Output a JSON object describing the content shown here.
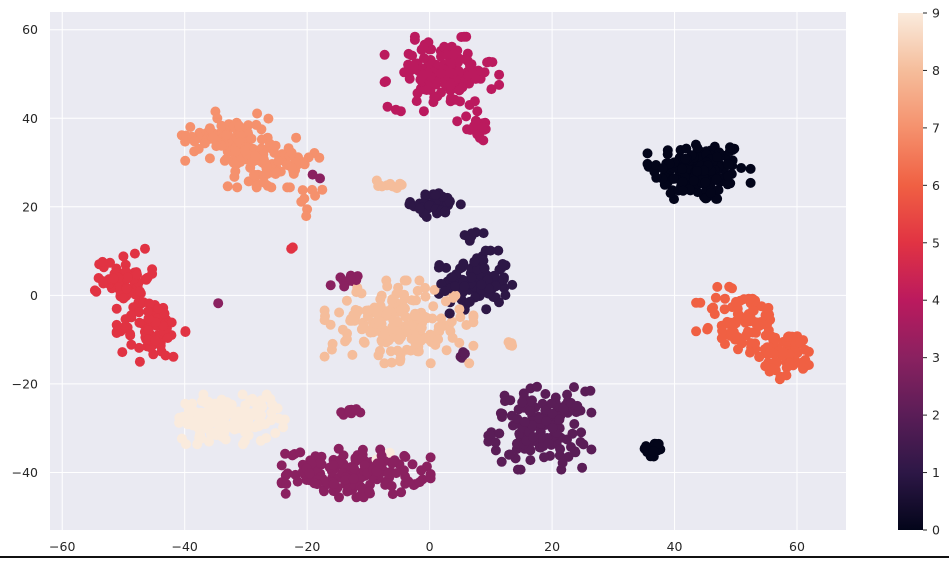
{
  "chart_data": {
    "type": "scatter",
    "title": "",
    "xlabel": "",
    "ylabel": "",
    "xlim": [
      -62,
      68
    ],
    "ylim": [
      -53,
      64
    ],
    "xticks": [
      -60,
      -40,
      -20,
      0,
      20,
      40,
      60
    ],
    "yticks": [
      -40,
      -20,
      0,
      20,
      40,
      60
    ],
    "x_tick_labels": [
      "−60",
      "−40",
      "−20",
      "0",
      "20",
      "40",
      "60"
    ],
    "y_tick_labels": [
      "−40",
      "−20",
      "0",
      "20",
      "40",
      "60"
    ],
    "grid": true,
    "background_color": "#eaeaf2",
    "colormap": "rocket",
    "colorbar": {
      "min": 0,
      "max": 9,
      "ticks": [
        "0",
        "1",
        "2",
        "3",
        "4",
        "5",
        "6",
        "7",
        "8",
        "9"
      ],
      "position": "right",
      "stops": [
        "#03051a",
        "#2d1746",
        "#5a1d57",
        "#8a2160",
        "#bb1a5e",
        "#e13343",
        "#f06043",
        "#f5916d",
        "#f5bd9b",
        "#faebdd"
      ]
    },
    "clusters": [
      {
        "label": 0,
        "center": [
          44,
          28
        ],
        "spread": [
          4.5,
          4.2
        ],
        "count": 160
      },
      {
        "label": 0,
        "center": [
          36.5,
          -35
        ],
        "spread": [
          1.0,
          1.2
        ],
        "count": 14
      },
      {
        "label": 1,
        "center": [
          7.5,
          3
        ],
        "spread": [
          3.2,
          3.8
        ],
        "count": 110
      },
      {
        "label": 1,
        "center": [
          1,
          20.5
        ],
        "spread": [
          2.3,
          1.5
        ],
        "count": 45
      },
      {
        "label": 1,
        "center": [
          7.5,
          14
        ],
        "spread": [
          1.0,
          1.0
        ],
        "count": 6
      },
      {
        "label": 2,
        "center": [
          18,
          -30
        ],
        "spread": [
          4.5,
          5.0
        ],
        "count": 150
      },
      {
        "label": 2,
        "center": [
          5.5,
          -14
        ],
        "spread": [
          0.5,
          0.7
        ],
        "count": 5
      },
      {
        "label": 3,
        "center": [
          -12,
          -40
        ],
        "spread": [
          6.5,
          3.0
        ],
        "count": 170
      },
      {
        "label": 3,
        "center": [
          -13,
          -26.5
        ],
        "spread": [
          0.9,
          0.6
        ],
        "count": 10
      },
      {
        "label": 3,
        "center": [
          -14,
          3
        ],
        "spread": [
          1.3,
          1.0
        ],
        "count": 11
      },
      {
        "label": 3,
        "center": [
          -19,
          26
        ],
        "spread": [
          1.0,
          2.0
        ],
        "count": 2
      },
      {
        "label": 3,
        "center": [
          -34.5,
          -2
        ],
        "spread": [
          0.2,
          0.2
        ],
        "count": 1
      },
      {
        "label": 4,
        "center": [
          2,
          50
        ],
        "spread": [
          5.0,
          4.5
        ],
        "count": 140
      },
      {
        "label": 4,
        "center": [
          7.5,
          38
        ],
        "spread": [
          1.6,
          1.6
        ],
        "count": 22
      },
      {
        "label": 5,
        "center": [
          -50,
          4
        ],
        "spread": [
          2.5,
          3.5
        ],
        "count": 60
      },
      {
        "label": 5,
        "center": [
          -45.5,
          -7.5
        ],
        "spread": [
          3.0,
          4.0
        ],
        "count": 80
      },
      {
        "label": 5,
        "center": [
          -22.5,
          10.5
        ],
        "spread": [
          0.3,
          0.3
        ],
        "count": 2
      },
      {
        "label": 6,
        "center": [
          51,
          -6
        ],
        "spread": [
          4.0,
          4.5
        ],
        "count": 80
      },
      {
        "label": 6,
        "center": [
          58.5,
          -13.5
        ],
        "spread": [
          2.5,
          3.0
        ],
        "count": 70
      },
      {
        "label": 7,
        "center": [
          -33,
          36
        ],
        "spread": [
          4.0,
          3.0
        ],
        "count": 90
      },
      {
        "label": 7,
        "center": [
          -25.5,
          30
        ],
        "spread": [
          4.0,
          3.0
        ],
        "count": 90
      },
      {
        "label": 7,
        "center": [
          -20,
          21
        ],
        "spread": [
          1.5,
          2.5
        ],
        "count": 8
      },
      {
        "label": 8,
        "center": [
          -5,
          -6
        ],
        "spread": [
          6.5,
          5.0
        ],
        "count": 200
      },
      {
        "label": 8,
        "center": [
          -7,
          25
        ],
        "spread": [
          1.3,
          0.8
        ],
        "count": 10
      },
      {
        "label": 8,
        "center": [
          13,
          -11
        ],
        "spread": [
          0.4,
          0.8
        ],
        "count": 4
      },
      {
        "label": 9,
        "center": [
          -33,
          -28
        ],
        "spread": [
          5.0,
          3.0
        ],
        "count": 150
      },
      {
        "label": 9,
        "center": [
          -8,
          -36
        ],
        "spread": [
          1.0,
          1.0
        ],
        "count": 3
      }
    ]
  }
}
